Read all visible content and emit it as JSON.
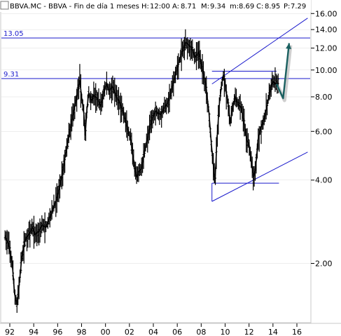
{
  "header": {
    "symbol_box": "BBVA.MC - BBVA - Fin de día 1 meses",
    "h_label": "H:",
    "h_value": "12:00",
    "a_label": "A:",
    "a_value": "8.71",
    "m_label": "M:",
    "m_value": "9.34",
    "min_label": "m:",
    "min_value": "8.69",
    "c_label": "C:",
    "c_value": "8.95",
    "p_label": "P:",
    "p_value": "7.29"
  },
  "colors": {
    "background": "#ffffff",
    "price": "#000000",
    "levels": "#1a1acc",
    "projection": "#1a6060",
    "p_value": "#e00000",
    "grid": "#dddddd"
  },
  "chart_data": {
    "type": "candlestick",
    "y_scale": "log",
    "ylim": [
      1.25,
      16.5
    ],
    "xlim": [
      1991.5,
      2016.9
    ],
    "y_ticks": [
      "16.00",
      "14.00",
      "12.00",
      "10.00",
      "8.00",
      "6.00",
      "4.00",
      "2.00"
    ],
    "y_tick_values": [
      16,
      14,
      12,
      10,
      8,
      6,
      4,
      2
    ],
    "x_ticks": [
      "92",
      "94",
      "96",
      "98",
      "00",
      "02",
      "04",
      "06",
      "08",
      "10",
      "12",
      "14",
      "16"
    ],
    "x_tick_values": [
      1992,
      1994,
      1996,
      1998,
      2000,
      2002,
      2004,
      2006,
      2008,
      2010,
      2012,
      2014,
      2016
    ],
    "price_path": [
      [
        1991.6,
        2.5
      ],
      [
        1991.9,
        2.35
      ],
      [
        1992.2,
        2.0
      ],
      [
        1992.4,
        1.55
      ],
      [
        1992.6,
        1.42
      ],
      [
        1992.8,
        1.7
      ],
      [
        1993.0,
        2.1
      ],
      [
        1993.3,
        2.45
      ],
      [
        1993.6,
        2.55
      ],
      [
        1993.9,
        2.7
      ],
      [
        1994.1,
        2.55
      ],
      [
        1994.4,
        2.6
      ],
      [
        1994.7,
        2.75
      ],
      [
        1995.0,
        2.7
      ],
      [
        1995.3,
        2.9
      ],
      [
        1995.6,
        3.15
      ],
      [
        1995.9,
        3.4
      ],
      [
        1996.2,
        3.85
      ],
      [
        1996.5,
        4.5
      ],
      [
        1996.8,
        5.4
      ],
      [
        1997.1,
        6.3
      ],
      [
        1997.3,
        7.0
      ],
      [
        1997.5,
        7.6
      ],
      [
        1997.7,
        8.6
      ],
      [
        1997.85,
        9.2
      ],
      [
        1998.0,
        8.0
      ],
      [
        1998.2,
        6.9
      ],
      [
        1998.3,
        5.8
      ],
      [
        1998.45,
        7.2
      ],
      [
        1998.6,
        8.3
      ],
      [
        1998.8,
        7.7
      ],
      [
        1999.0,
        8.1
      ],
      [
        1999.3,
        7.9
      ],
      [
        1999.6,
        7.4
      ],
      [
        1999.9,
        8.5
      ],
      [
        2000.1,
        8.9
      ],
      [
        2000.3,
        8.4
      ],
      [
        2000.6,
        8.7
      ],
      [
        2000.9,
        8.0
      ],
      [
        2001.2,
        7.6
      ],
      [
        2001.5,
        7.0
      ],
      [
        2001.8,
        6.2
      ],
      [
        2002.1,
        5.6
      ],
      [
        2002.4,
        4.5
      ],
      [
        2002.6,
        4.1
      ],
      [
        2002.8,
        4.3
      ],
      [
        2003.0,
        4.4
      ],
      [
        2003.3,
        5.2
      ],
      [
        2003.6,
        5.9
      ],
      [
        2003.9,
        6.7
      ],
      [
        2004.2,
        7.1
      ],
      [
        2004.6,
        6.9
      ],
      [
        2004.9,
        7.3
      ],
      [
        2005.2,
        7.6
      ],
      [
        2005.5,
        8.4
      ],
      [
        2005.8,
        9.4
      ],
      [
        2006.1,
        10.6
      ],
      [
        2006.4,
        11.6
      ],
      [
        2006.7,
        12.6
      ],
      [
        2006.9,
        12.4
      ],
      [
        2007.2,
        12.0
      ],
      [
        2007.5,
        11.1
      ],
      [
        2007.8,
        11.6
      ],
      [
        2008.1,
        10.1
      ],
      [
        2008.4,
        8.8
      ],
      [
        2008.65,
        7.0
      ],
      [
        2008.85,
        5.4
      ],
      [
        2009.0,
        4.6
      ],
      [
        2009.15,
        3.9
      ],
      [
        2009.3,
        5.4
      ],
      [
        2009.5,
        7.4
      ],
      [
        2009.7,
        8.8
      ],
      [
        2009.85,
        9.6
      ],
      [
        2010.0,
        8.9
      ],
      [
        2010.2,
        7.8
      ],
      [
        2010.45,
        6.4
      ],
      [
        2010.6,
        7.2
      ],
      [
        2010.85,
        8.0
      ],
      [
        2011.1,
        7.5
      ],
      [
        2011.35,
        7.3
      ],
      [
        2011.6,
        6.4
      ],
      [
        2011.8,
        5.6
      ],
      [
        2012.0,
        5.4
      ],
      [
        2012.2,
        4.6
      ],
      [
        2012.4,
        4.1
      ],
      [
        2012.55,
        4.4
      ],
      [
        2012.75,
        5.6
      ],
      [
        2013.0,
        6.2
      ],
      [
        2013.3,
        6.7
      ],
      [
        2013.55,
        7.6
      ],
      [
        2013.8,
        8.6
      ],
      [
        2014.0,
        9.1
      ],
      [
        2014.2,
        8.9
      ],
      [
        2014.5,
        8.95
      ]
    ],
    "horizontal_levels": [
      {
        "label": "13.05",
        "value": 13.05
      },
      {
        "label": "9.31",
        "value": 9.31
      }
    ],
    "horizontal_lines": [
      {
        "value": 9.9,
        "x_from": 2008.9,
        "x_to": 2014.3
      },
      {
        "value": 3.9,
        "x_from": 2008.9,
        "x_to": 2014.5
      }
    ],
    "trend_lines": [
      {
        "from": [
          2008.9,
          8.9
        ],
        "to": [
          2016.9,
          15.4
        ]
      },
      {
        "from": [
          2008.9,
          3.35
        ],
        "to": [
          2016.9,
          5.05
        ]
      }
    ],
    "projection": {
      "path": [
        [
          2014.3,
          8.9
        ],
        [
          2014.85,
          7.9
        ],
        [
          2015.35,
          12.5
        ]
      ]
    }
  }
}
